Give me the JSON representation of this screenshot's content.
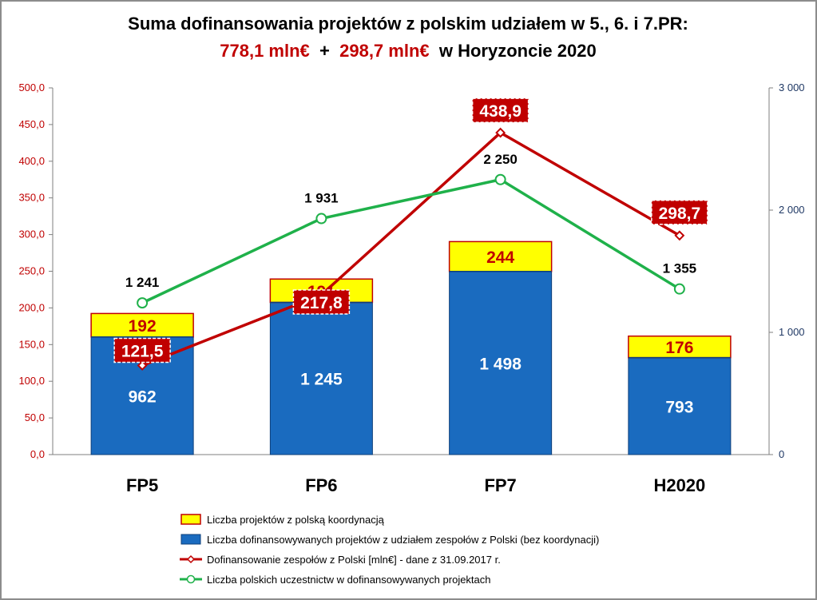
{
  "title": {
    "line1": "Suma dofinansowania projektów z polskim udziałem w 5., 6. i 7.PR:",
    "line2_part1": "778,1 mln€",
    "line2_part2": " + ",
    "line2_part3": "298,7 mln€",
    "line2_part4": " w Horyzoncie 2020"
  },
  "colors": {
    "bar_blue": "#1a6bbf",
    "bar_yellow": "#ffff00",
    "bar_border": "#c00000",
    "line_red": "#c00000",
    "line_green": "#1fb14a",
    "label_box": "#c00000",
    "left_axis_text": "#c00000",
    "right_axis_text": "#1f3864"
  },
  "chart_data": {
    "type": "bar",
    "categories": [
      "FP5",
      "FP6",
      "FP7",
      "H2020"
    ],
    "series": [
      {
        "name": "Liczba projektów z polską koordynacją",
        "kind": "stacked-bar-top",
        "axis": "left",
        "values": [
          192,
          191,
          244,
          176
        ],
        "labels": [
          "192",
          "191",
          "244",
          "176"
        ]
      },
      {
        "name": "Liczba dofinansowywanych projektów z udziałem zespołów z Polski (bez koordynacji)",
        "kind": "stacked-bar-base",
        "axis": "left",
        "values": [
          962,
          1245,
          1498,
          793
        ],
        "labels": [
          "962",
          "1 245",
          "1 498",
          "793"
        ]
      },
      {
        "name": "Dofinansowanie zespołów z Polski [mln€] - dane z 31.09.2017 r.",
        "kind": "line",
        "axis": "left",
        "values": [
          121.5,
          217.8,
          438.9,
          298.7
        ],
        "labels": [
          "121,5",
          "217,8",
          "438,9",
          "298,7"
        ]
      },
      {
        "name": "Liczba polskich uczestnictw w dofinansowywanych projektach",
        "kind": "line",
        "axis": "right",
        "values": [
          1241,
          1931,
          2250,
          1355
        ],
        "labels": [
          "1 241",
          "1 931",
          "2 250",
          "1 355"
        ]
      }
    ],
    "bar_stack_scale_left": 0.1667,
    "y_left": {
      "min": 0,
      "max": 500,
      "step": 50,
      "tick_labels": [
        "0,0",
        "50,0",
        "100,0",
        "150,0",
        "200,0",
        "250,0",
        "300,0",
        "350,0",
        "400,0",
        "450,0",
        "500,0"
      ]
    },
    "y_right": {
      "min": 0,
      "max": 3000,
      "step": 1000,
      "tick_labels": [
        "0",
        "1 000",
        "2 000",
        "3 000"
      ]
    },
    "grid": false,
    "legend_position": "bottom"
  }
}
